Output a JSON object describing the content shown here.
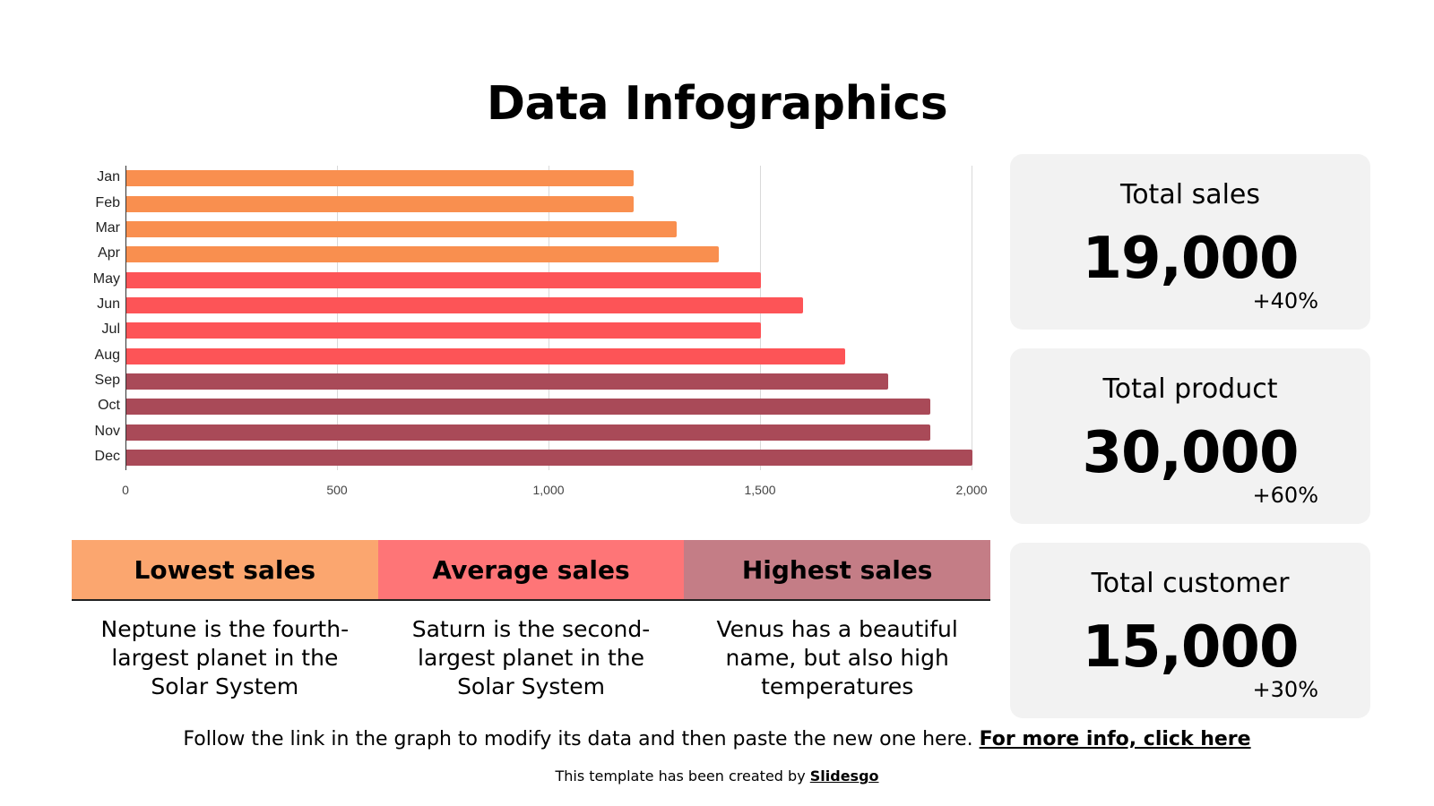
{
  "title": "Data Infographics",
  "chart_data": {
    "type": "bar",
    "orientation": "horizontal",
    "title": "",
    "xlabel": "",
    "ylabel": "",
    "categories": [
      "Jan",
      "Feb",
      "Mar",
      "Apr",
      "May",
      "Jun",
      "Jul",
      "Aug",
      "Sep",
      "Oct",
      "Nov",
      "Dec"
    ],
    "values": [
      1200,
      1200,
      1300,
      1400,
      1500,
      1600,
      1500,
      1700,
      1800,
      1900,
      1900,
      2000
    ],
    "colors": [
      "#f98f4f",
      "#f98f4f",
      "#f98f4f",
      "#f98f4f",
      "#fd5457",
      "#fd5457",
      "#fd5457",
      "#fd5457",
      "#a94a58",
      "#a94a58",
      "#a94a58",
      "#a94a58"
    ],
    "xlim": [
      0,
      2000
    ],
    "ticks": [
      "0",
      "500",
      "1,000",
      "1,500",
      "2,000"
    ],
    "tick_values": [
      0,
      500,
      1000,
      1500,
      2000
    ],
    "grid": true,
    "legend": null
  },
  "categories": [
    {
      "label": "Lowest sales",
      "color": "#fba66f",
      "text": "Neptune is the fourth-largest planet in the Solar System"
    },
    {
      "label": "Average sales",
      "color": "#fe7577",
      "text": "Saturn is the second-largest planet in the Solar System"
    },
    {
      "label": "Highest sales",
      "color": "#c47d86",
      "text": "Venus has a beautiful name, but also high temperatures"
    }
  ],
  "stats": [
    {
      "title": "Total sales",
      "value": "19,000",
      "change": "+40%"
    },
    {
      "title": "Total product",
      "value": "30,000",
      "change": "+60%"
    },
    {
      "title": "Total customer",
      "value": "15,000",
      "change": "+30%"
    }
  ],
  "note": {
    "text": "Follow the link in the graph to modify its data and then paste the new one here. ",
    "link": "For more info, click here"
  },
  "credit": {
    "text": "This template has been created by ",
    "link": "Slidesgo"
  }
}
